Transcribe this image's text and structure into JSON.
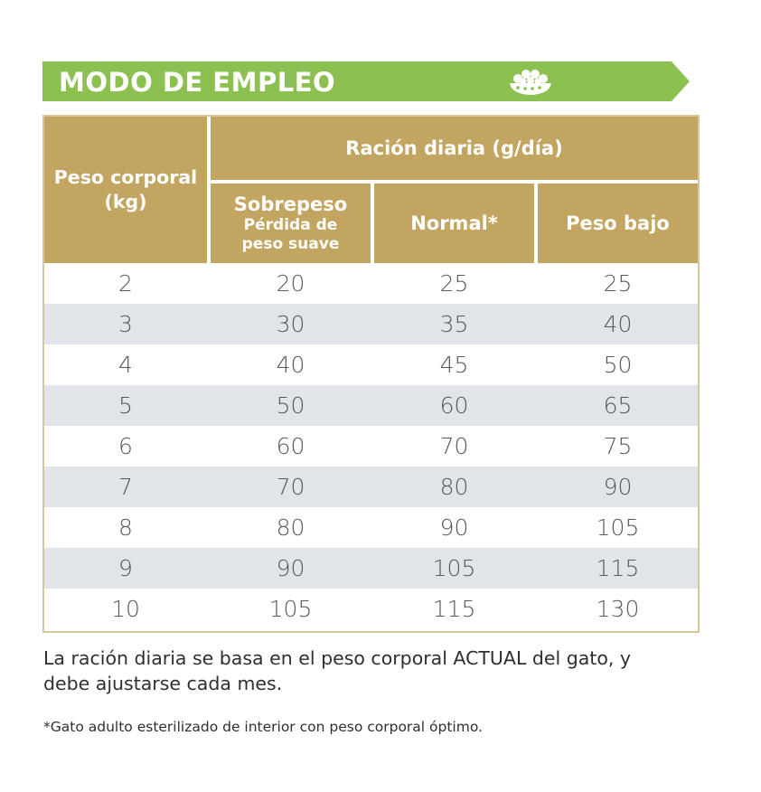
{
  "banner": {
    "title": "MODO DE EMPLEO",
    "color": "#8cc152",
    "icon": "food-bowl-icon"
  },
  "table": {
    "header_color": "#c2a561",
    "alt_row_color": "#e1e5ea",
    "weight_header": "Peso corporal (kg)",
    "ration_header": "Ración diaria (g/día)",
    "sub_headers": {
      "overweight": "Sobrepeso",
      "overweight_sub": "Pérdida de peso suave",
      "normal": "Normal*",
      "underweight": "Peso bajo"
    },
    "rows": [
      {
        "weight": "2",
        "overweight": "20",
        "normal": "25",
        "underweight": "25"
      },
      {
        "weight": "3",
        "overweight": "30",
        "normal": "35",
        "underweight": "40"
      },
      {
        "weight": "4",
        "overweight": "40",
        "normal": "45",
        "underweight": "50"
      },
      {
        "weight": "5",
        "overweight": "50",
        "normal": "60",
        "underweight": "65"
      },
      {
        "weight": "6",
        "overweight": "60",
        "normal": "70",
        "underweight": "75"
      },
      {
        "weight": "7",
        "overweight": "70",
        "normal": "80",
        "underweight": "90"
      },
      {
        "weight": "8",
        "overweight": "80",
        "normal": "90",
        "underweight": "105"
      },
      {
        "weight": "9",
        "overweight": "90",
        "normal": "105",
        "underweight": "115"
      },
      {
        "weight": "10",
        "overweight": "105",
        "normal": "115",
        "underweight": "130"
      }
    ]
  },
  "notes": {
    "daily_ration": "La ración diaria se basa en el peso corporal ACTUAL del gato, y debe ajustarse cada mes.",
    "footnote": "*Gato adulto esterilizado de interior con peso corporal óptimo."
  }
}
